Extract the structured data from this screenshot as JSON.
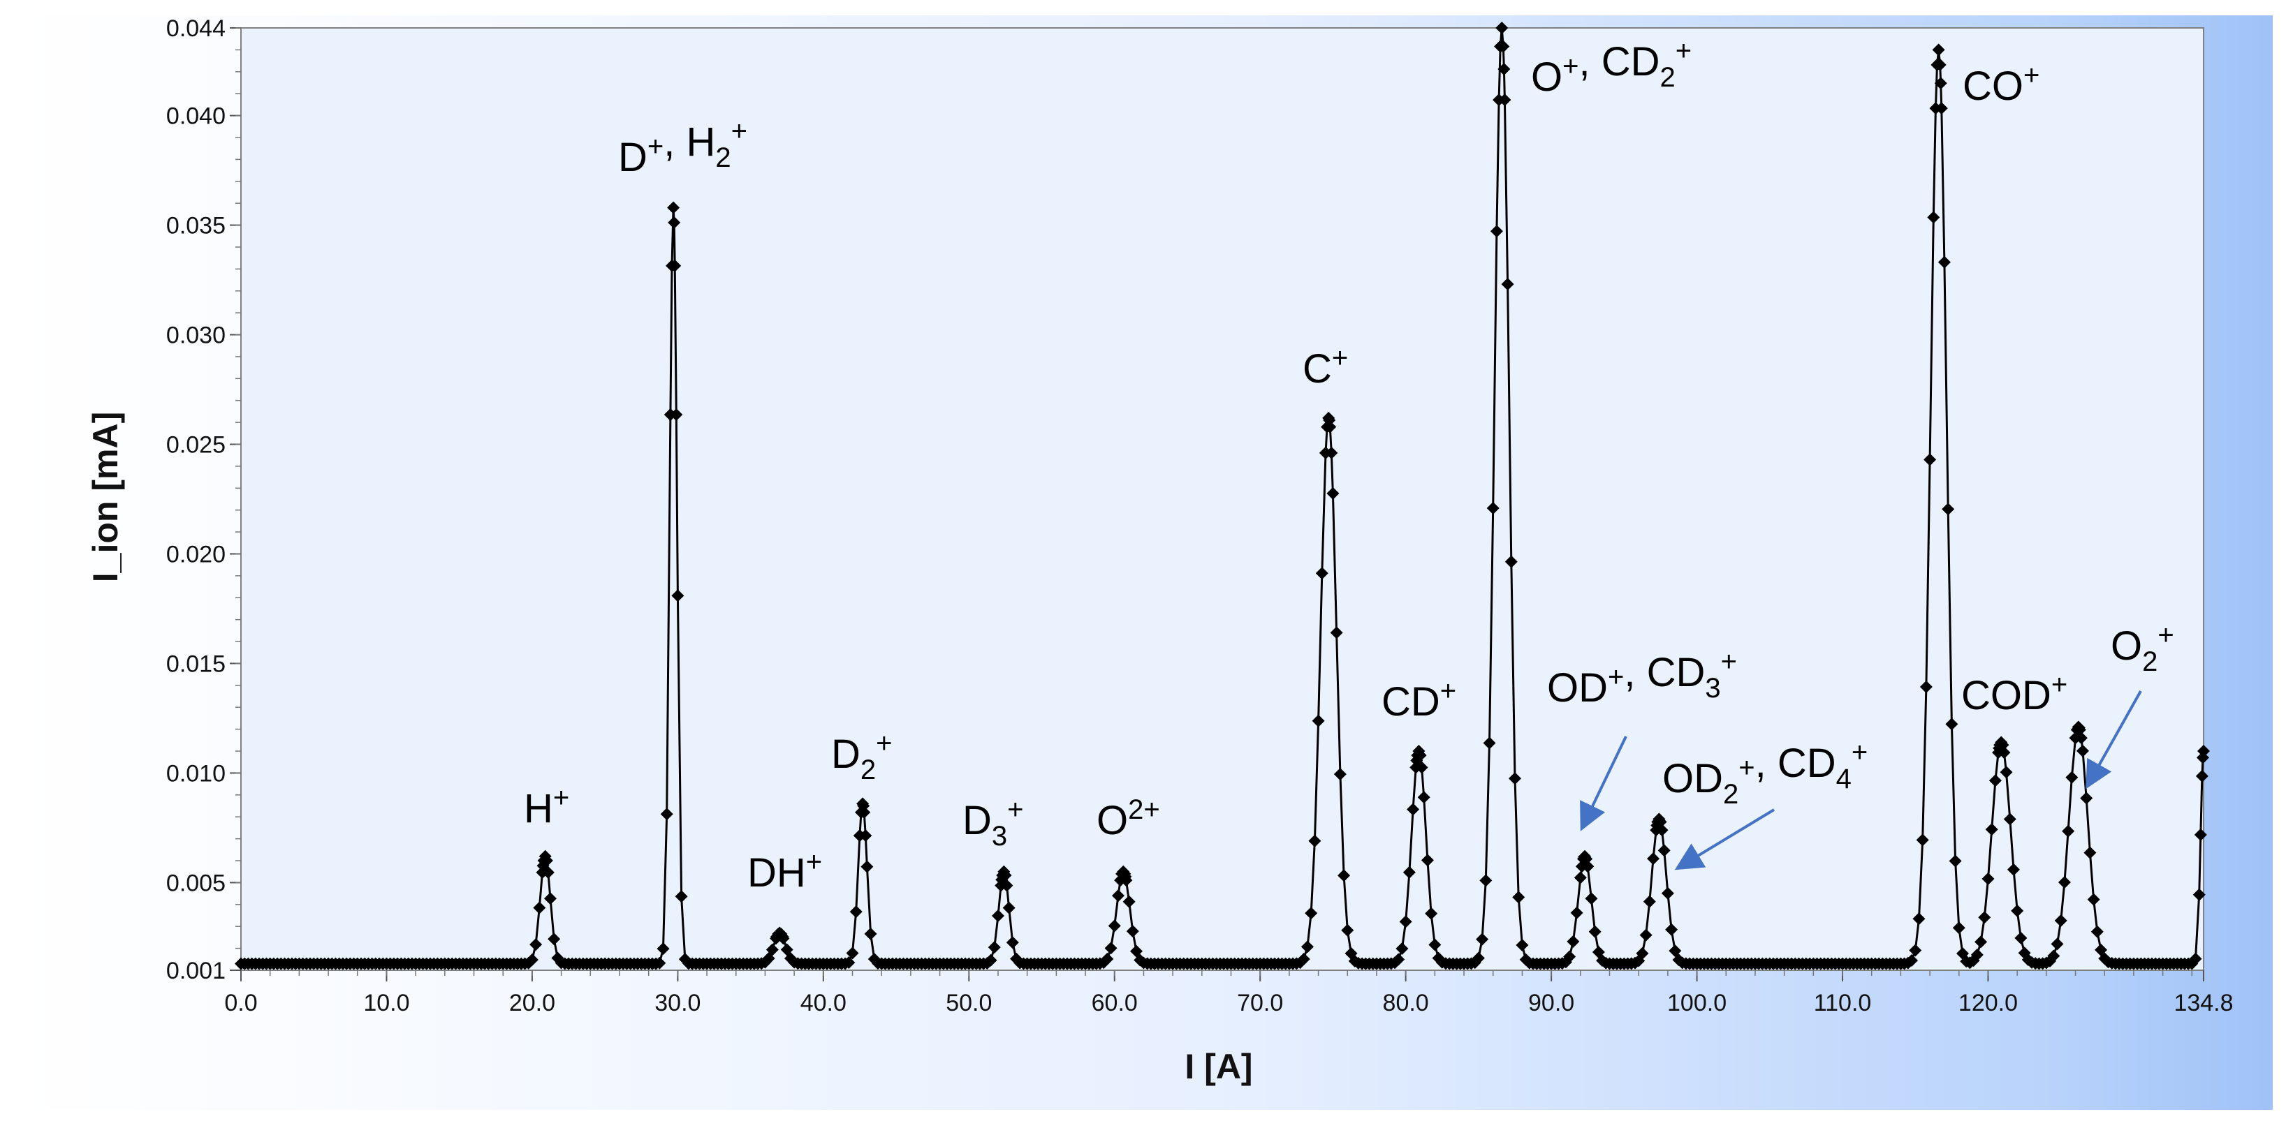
{
  "chart_data": {
    "type": "line",
    "xlabel": "I [A]",
    "ylabel": "I_ion [mA]",
    "xlim": [
      0.0,
      134.8
    ],
    "ylim": [
      0.001,
      0.044
    ],
    "x_tick_labels": [
      "0.0",
      "10.0",
      "20.0",
      "30.0",
      "40.0",
      "50.0",
      "60.0",
      "70.0",
      "80.0",
      "90.0",
      "100.0",
      "110.0",
      "120.0",
      "134.8"
    ],
    "x_tick_values": [
      0,
      10,
      20,
      30,
      40,
      50,
      60,
      70,
      80,
      90,
      100,
      110,
      120,
      134.8
    ],
    "y_tick_labels": [
      "0.001",
      "0.005",
      "0.010",
      "0.015",
      "0.020",
      "0.025",
      "0.030",
      "0.035",
      "0.040",
      "0.044"
    ],
    "y_tick_values": [
      0.001,
      0.005,
      0.01,
      0.015,
      0.02,
      0.025,
      0.03,
      0.035,
      0.04,
      0.044
    ],
    "grid": false,
    "marker": "diamond",
    "line_color": "#000000",
    "background_color": "#eaf2fd",
    "arrow_color": "#4472c4",
    "baseline": 0.0013,
    "peaks": [
      {
        "center": 20.9,
        "height": 0.0062,
        "width": 0.35
      },
      {
        "center": 29.7,
        "height": 0.0358,
        "width": 0.25
      },
      {
        "center": 37.0,
        "height": 0.0027,
        "width": 0.4
      },
      {
        "center": 42.7,
        "height": 0.0086,
        "width": 0.3
      },
      {
        "center": 52.4,
        "height": 0.0055,
        "width": 0.35
      },
      {
        "center": 60.6,
        "height": 0.0055,
        "width": 0.45
      },
      {
        "center": 74.7,
        "height": 0.0262,
        "width": 0.55
      },
      {
        "center": 80.9,
        "height": 0.011,
        "width": 0.5
      },
      {
        "center": 86.6,
        "height": 0.044,
        "width": 0.5
      },
      {
        "center": 92.3,
        "height": 0.0062,
        "width": 0.45
      },
      {
        "center": 97.4,
        "height": 0.0079,
        "width": 0.5
      },
      {
        "center": 116.6,
        "height": 0.043,
        "width": 0.55
      },
      {
        "center": 120.9,
        "height": 0.0114,
        "width": 0.65
      },
      {
        "center": 126.2,
        "height": 0.0121,
        "width": 0.65
      },
      {
        "center": 134.8,
        "height": 0.011,
        "width": 0.2
      }
    ],
    "annotations": [
      {
        "id": "h-plus",
        "base": "H",
        "sub": "",
        "sup": "+",
        "rest": []
      },
      {
        "id": "d-plus-h2-plus",
        "base": "D",
        "sub": "",
        "sup": "+",
        "rest": [
          {
            "base": ", H",
            "sub": "2",
            "sup": "+"
          }
        ]
      },
      {
        "id": "dh-plus",
        "base": "DH",
        "sub": "",
        "sup": "+",
        "rest": []
      },
      {
        "id": "d2-plus",
        "base": "D",
        "sub": "2",
        "sup": "+",
        "rest": []
      },
      {
        "id": "d3-plus",
        "base": "D",
        "sub": "3",
        "sup": "+",
        "rest": []
      },
      {
        "id": "o2-plus-double",
        "base": "O",
        "sub": "",
        "sup": "2+",
        "rest": []
      },
      {
        "id": "c-plus",
        "base": "C",
        "sub": "",
        "sup": "+",
        "rest": []
      },
      {
        "id": "cd-plus",
        "base": "CD",
        "sub": "",
        "sup": "+",
        "rest": []
      },
      {
        "id": "o-plus-cd2-plus",
        "base": "O",
        "sub": "",
        "sup": "+",
        "rest": [
          {
            "base": ", CD",
            "sub": "2",
            "sup": "+"
          }
        ]
      },
      {
        "id": "od-plus-cd3-plus",
        "base": "OD",
        "sub": "",
        "sup": "+",
        "rest": [
          {
            "base": ", CD",
            "sub": "3",
            "sup": "+"
          }
        ]
      },
      {
        "id": "od2-plus-cd4-plus",
        "base": "OD",
        "sub": "2",
        "sup": "+",
        "rest": [
          {
            "base": ", CD",
            "sub": "4",
            "sup": "+"
          }
        ]
      },
      {
        "id": "co-plus",
        "base": "CO",
        "sub": "",
        "sup": "+",
        "rest": []
      },
      {
        "id": "cod-plus",
        "base": "COD",
        "sub": "",
        "sup": "+",
        "rest": []
      },
      {
        "id": "o2-plus",
        "base": "O",
        "sub": "2",
        "sup": "+",
        "rest": []
      }
    ]
  }
}
